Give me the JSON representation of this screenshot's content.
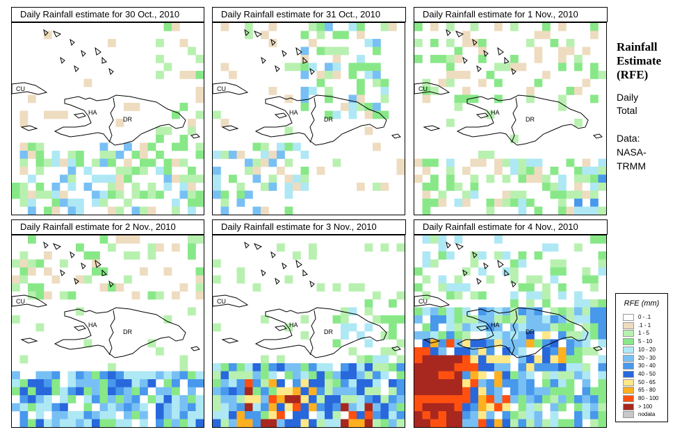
{
  "panels": [
    {
      "title": "Daily Rainfall estimate for  30 Oct., 2010",
      "seed": 11,
      "pattern": "p1"
    },
    {
      "title": "Daily Rainfall estimate for  31 Oct., 2010",
      "seed": 22,
      "pattern": "p2"
    },
    {
      "title": "Daily Rainfall estimate for  1 Nov., 2010",
      "seed": 33,
      "pattern": "p3"
    },
    {
      "title": "Daily Rainfall estimate for  2 Nov., 2010",
      "seed": 44,
      "pattern": "p4"
    },
    {
      "title": "Daily Rainfall estimate for  3 Nov., 2010",
      "seed": 55,
      "pattern": "p5"
    },
    {
      "title": "Daily Rainfall estimate for  4 Nov., 2010",
      "seed": 66,
      "pattern": "p6"
    }
  ],
  "map_labels": {
    "cuba": "CU",
    "haiti": "HA",
    "dominican_republic": "DR"
  },
  "sidebar": {
    "title_line1": "Rainfall",
    "title_line2": "Estimate",
    "title_line3": "(RFE)",
    "daily": "Daily",
    "total": "Total",
    "data_label": "Data:",
    "data_source1": "NASA-",
    "data_source2": "TRMM"
  },
  "legend": {
    "title": "RFE (mm)",
    "items": [
      {
        "label": "0 - .1",
        "color": "#ffffff"
      },
      {
        "label": ".1 - 1",
        "color": "#eedcc0"
      },
      {
        "label": "1 - 5",
        "color": "#b8f0b0"
      },
      {
        "label": "5 - 10",
        "color": "#88e888"
      },
      {
        "label": "10 - 20",
        "color": "#aee8f4"
      },
      {
        "label": "20 - 30",
        "color": "#78c0f4"
      },
      {
        "label": "30 - 40",
        "color": "#4898ec"
      },
      {
        "label": "40 - 50",
        "color": "#2868dc"
      },
      {
        "label": "50 - 65",
        "color": "#ffe888"
      },
      {
        "label": "65 - 80",
        "color": "#ffb020"
      },
      {
        "label": "80 - 100",
        "color": "#ff5010"
      },
      {
        "label": "> 100",
        "color": "#a82820"
      },
      {
        "label": "nodata",
        "color": "#c8c8c8"
      }
    ]
  }
}
